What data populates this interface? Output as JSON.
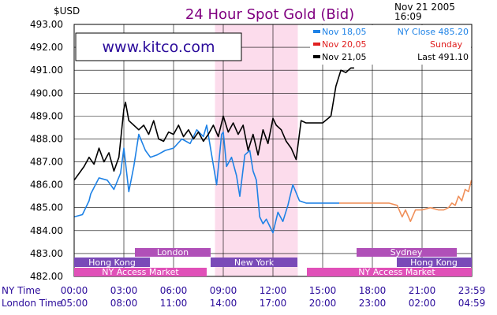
{
  "header": {
    "currency_label": "$USD",
    "title": "24 Hour Spot Gold (Bid)",
    "date": "Nov 21 2005",
    "time": "16:09"
  },
  "watermark": "www.kitco.com",
  "legend": [
    {
      "label": "Nov 18,05",
      "note": "NY Close 485.20",
      "color": "#1e82e6"
    },
    {
      "label": "Nov 20,05",
      "note": "Sunday",
      "color": "#e02020"
    },
    {
      "label": "Nov 21,05",
      "note": "Last 491.10",
      "color": "#000000"
    }
  ],
  "sessions": {
    "london": "London",
    "sydney": "Sydney",
    "hong_kong_1": "Hong Kong",
    "new_york": "New York",
    "hong_kong_2": "Hong Kong",
    "ny_access_1": "NY Access Market",
    "ny_access_2": "NY Access Market"
  },
  "row_labels": {
    "ny_time": "NY Time",
    "london_time": "London Time"
  },
  "colors": {
    "nov18": "#1e82e6",
    "nov20": "#f0905a",
    "nov21": "#000000",
    "highlight": "#fcdcec",
    "london_bar": "#b050b8",
    "sydney_bar": "#b050b8",
    "hongkong_bar": "#7a4ab8",
    "newyork_bar": "#7a4ab8",
    "nyaccess_bar": "#e050b8"
  },
  "chart_data": {
    "type": "line",
    "title": "24 Hour Spot Gold (Bid)",
    "ylabel": "$USD",
    "xlabel": "",
    "ylim": [
      482,
      493
    ],
    "yticks": [
      "493.00",
      "492.00",
      "491.00",
      "490.00",
      "489.00",
      "488.00",
      "487.00",
      "486.00",
      "485.00",
      "484.00",
      "483.00",
      "482.00"
    ],
    "x_unit": "hours since 00:00 NY",
    "xlim": [
      0,
      24
    ],
    "ny_ticks": [
      "00:00",
      "03:00",
      "06:00",
      "09:00",
      "12:00",
      "15:00",
      "18:00",
      "21:00",
      "23:59"
    ],
    "london_ticks": [
      "05:00",
      "08:00",
      "11:00",
      "14:00",
      "17:00",
      "20:00",
      "23:00",
      "02:00",
      "04:59"
    ],
    "highlight_range": [
      8.5,
      13.5
    ],
    "series": [
      {
        "name": "Nov 18,05",
        "x": [
          0,
          0.5,
          0.9,
          1.0,
          1.5,
          2.0,
          2.4,
          2.8,
          3.0,
          3.3,
          3.6,
          3.9,
          4.3,
          4.6,
          5.0,
          5.5,
          6.0,
          6.5,
          7.0,
          7.4,
          7.8,
          8.0,
          8.3,
          8.6,
          8.9,
          9.0,
          9.2,
          9.5,
          9.8,
          10.0,
          10.3,
          10.6,
          10.8,
          11.0,
          11.2,
          11.4,
          11.6,
          11.8,
          12.0,
          12.3,
          12.6,
          12.9,
          13.2,
          13.6,
          14.0,
          15.0,
          16.0
        ],
        "y": [
          484.6,
          484.7,
          485.3,
          485.6,
          486.3,
          486.2,
          485.8,
          486.5,
          487.6,
          485.7,
          486.8,
          488.2,
          487.5,
          487.2,
          487.3,
          487.5,
          487.6,
          488.0,
          487.8,
          488.4,
          488.1,
          488.6,
          487.3,
          486.0,
          488.2,
          488.3,
          486.8,
          487.2,
          486.4,
          485.5,
          487.3,
          487.5,
          486.6,
          486.2,
          484.6,
          484.3,
          484.5,
          484.2,
          483.9,
          484.8,
          484.4,
          485.1,
          486.0,
          485.3,
          485.2,
          485.2,
          485.2
        ]
      },
      {
        "name": "Nov 20,05",
        "x": [
          16.0,
          17.0,
          18.0,
          19.0,
          19.5,
          19.8,
          20.0,
          20.3,
          20.6,
          21.0,
          21.5,
          22.0,
          22.3,
          22.6,
          22.8,
          23.0,
          23.2,
          23.4,
          23.6,
          23.8,
          23.98
        ],
        "y": [
          485.2,
          485.2,
          485.2,
          485.2,
          485.1,
          484.6,
          484.9,
          484.4,
          484.9,
          484.9,
          485.0,
          484.9,
          484.9,
          485.0,
          485.2,
          485.1,
          485.5,
          485.3,
          485.8,
          485.7,
          486.2
        ]
      },
      {
        "name": "Nov 21,05",
        "x": [
          0,
          0.3,
          0.6,
          0.9,
          1.2,
          1.5,
          1.8,
          2.1,
          2.4,
          2.7,
          3.0,
          3.1,
          3.3,
          3.6,
          3.9,
          4.2,
          4.5,
          4.8,
          5.1,
          5.4,
          5.7,
          6.0,
          6.3,
          6.6,
          6.9,
          7.2,
          7.5,
          7.8,
          8.1,
          8.4,
          8.7,
          9.0,
          9.3,
          9.6,
          9.9,
          10.2,
          10.5,
          10.8,
          11.1,
          11.4,
          11.7,
          12.0,
          12.2,
          12.5,
          12.8,
          13.1,
          13.4,
          13.7,
          14.0,
          14.5,
          15.0,
          15.5,
          15.8,
          16.1,
          16.4,
          16.7,
          16.9
        ],
        "y": [
          486.2,
          486.5,
          486.8,
          487.2,
          486.9,
          487.6,
          487.0,
          487.4,
          486.6,
          487.2,
          489.3,
          489.6,
          488.8,
          488.6,
          488.4,
          488.6,
          488.2,
          488.8,
          488.0,
          487.9,
          488.3,
          488.2,
          488.6,
          488.1,
          488.4,
          488.0,
          488.3,
          487.9,
          488.2,
          488.6,
          488.1,
          489.0,
          488.3,
          488.7,
          488.2,
          488.6,
          487.5,
          488.2,
          487.3,
          488.4,
          487.8,
          488.9,
          488.6,
          488.4,
          487.9,
          487.6,
          487.1,
          488.8,
          488.7,
          488.7,
          488.7,
          489.0,
          490.3,
          491.0,
          490.9,
          491.1,
          491.1
        ]
      }
    ]
  }
}
